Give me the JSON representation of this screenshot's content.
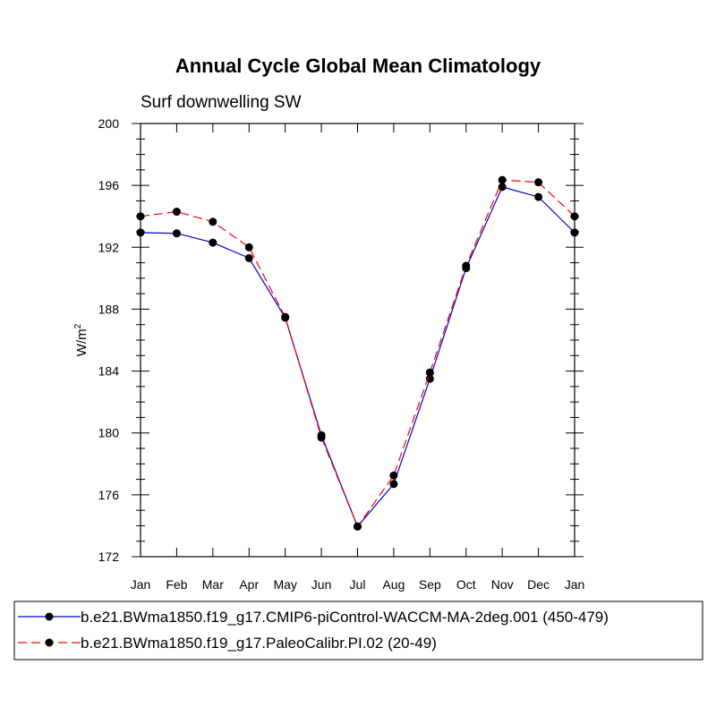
{
  "chart_data": {
    "type": "line",
    "title": "Annual Cycle Global Mean Climatology",
    "subtitle": "Surf downwelling SW",
    "xlabel": "",
    "ylabel": "W/m",
    "ylabel_superscript": "2",
    "ylim": [
      172,
      200
    ],
    "yticks": [
      172,
      176,
      180,
      184,
      188,
      192,
      196,
      200
    ],
    "categories": [
      "Jan",
      "Feb",
      "Mar",
      "Apr",
      "May",
      "Jun",
      "Jul",
      "Aug",
      "Sep",
      "Oct",
      "Nov",
      "Dec",
      "Jan"
    ],
    "series": [
      {
        "name": "b.e21.BWma1850.f19_g17.CMIP6-piControl-WACCM-MA-2deg.001 (450-479)",
        "color": "#0000cc",
        "dash": "solid",
        "values": [
          192.95,
          192.9,
          192.3,
          191.3,
          187.45,
          179.85,
          173.95,
          176.7,
          183.5,
          190.65,
          195.9,
          195.25,
          192.95
        ]
      },
      {
        "name": "b.e21.BWma1850.f19_g17.PaleoCalibr.PI.02 (20-49)",
        "color": "#ff0000",
        "dash": "dashed",
        "values": [
          194.0,
          194.3,
          193.65,
          192.0,
          187.5,
          179.7,
          173.95,
          177.25,
          183.9,
          190.8,
          196.35,
          196.2,
          194.0
        ]
      }
    ]
  }
}
